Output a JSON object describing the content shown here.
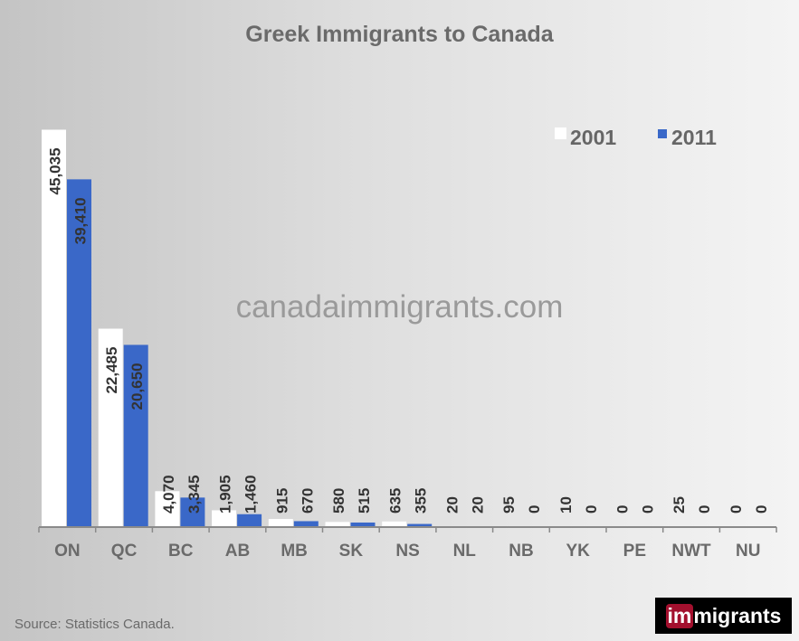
{
  "chart_data": {
    "type": "bar",
    "title": "Greek Immigrants to Canada",
    "categories": [
      "ON",
      "QC",
      "BC",
      "AB",
      "MB",
      "SK",
      "NS",
      "NL",
      "NB",
      "YK",
      "PE",
      "NWT",
      "NU"
    ],
    "series": [
      {
        "name": "2001",
        "color": "#ffffff",
        "values": [
          45035,
          22485,
          4070,
          1905,
          915,
          580,
          635,
          20,
          95,
          10,
          0,
          25,
          0
        ],
        "labels": [
          "45,035",
          "22,485",
          "4,070",
          "1,905",
          "915",
          "580",
          "635",
          "20",
          "95",
          "10",
          "0",
          "25",
          "0"
        ]
      },
      {
        "name": "2011",
        "color": "#3a68c8",
        "values": [
          39410,
          20650,
          3345,
          1460,
          670,
          515,
          355,
          20,
          0,
          0,
          0,
          0,
          0
        ],
        "labels": [
          "39,410",
          "20,650",
          "3,345",
          "1,460",
          "670",
          "515",
          "355",
          "20",
          "0",
          "0",
          "0",
          "0",
          "0"
        ]
      }
    ],
    "ylim": [
      0,
      50000
    ],
    "grid": false,
    "legend": "top-right"
  },
  "watermark": "canadaimmigrants.com",
  "source": "Source: Statistics Canada.",
  "logo": {
    "part1": "im",
    "part2": "migrants"
  }
}
